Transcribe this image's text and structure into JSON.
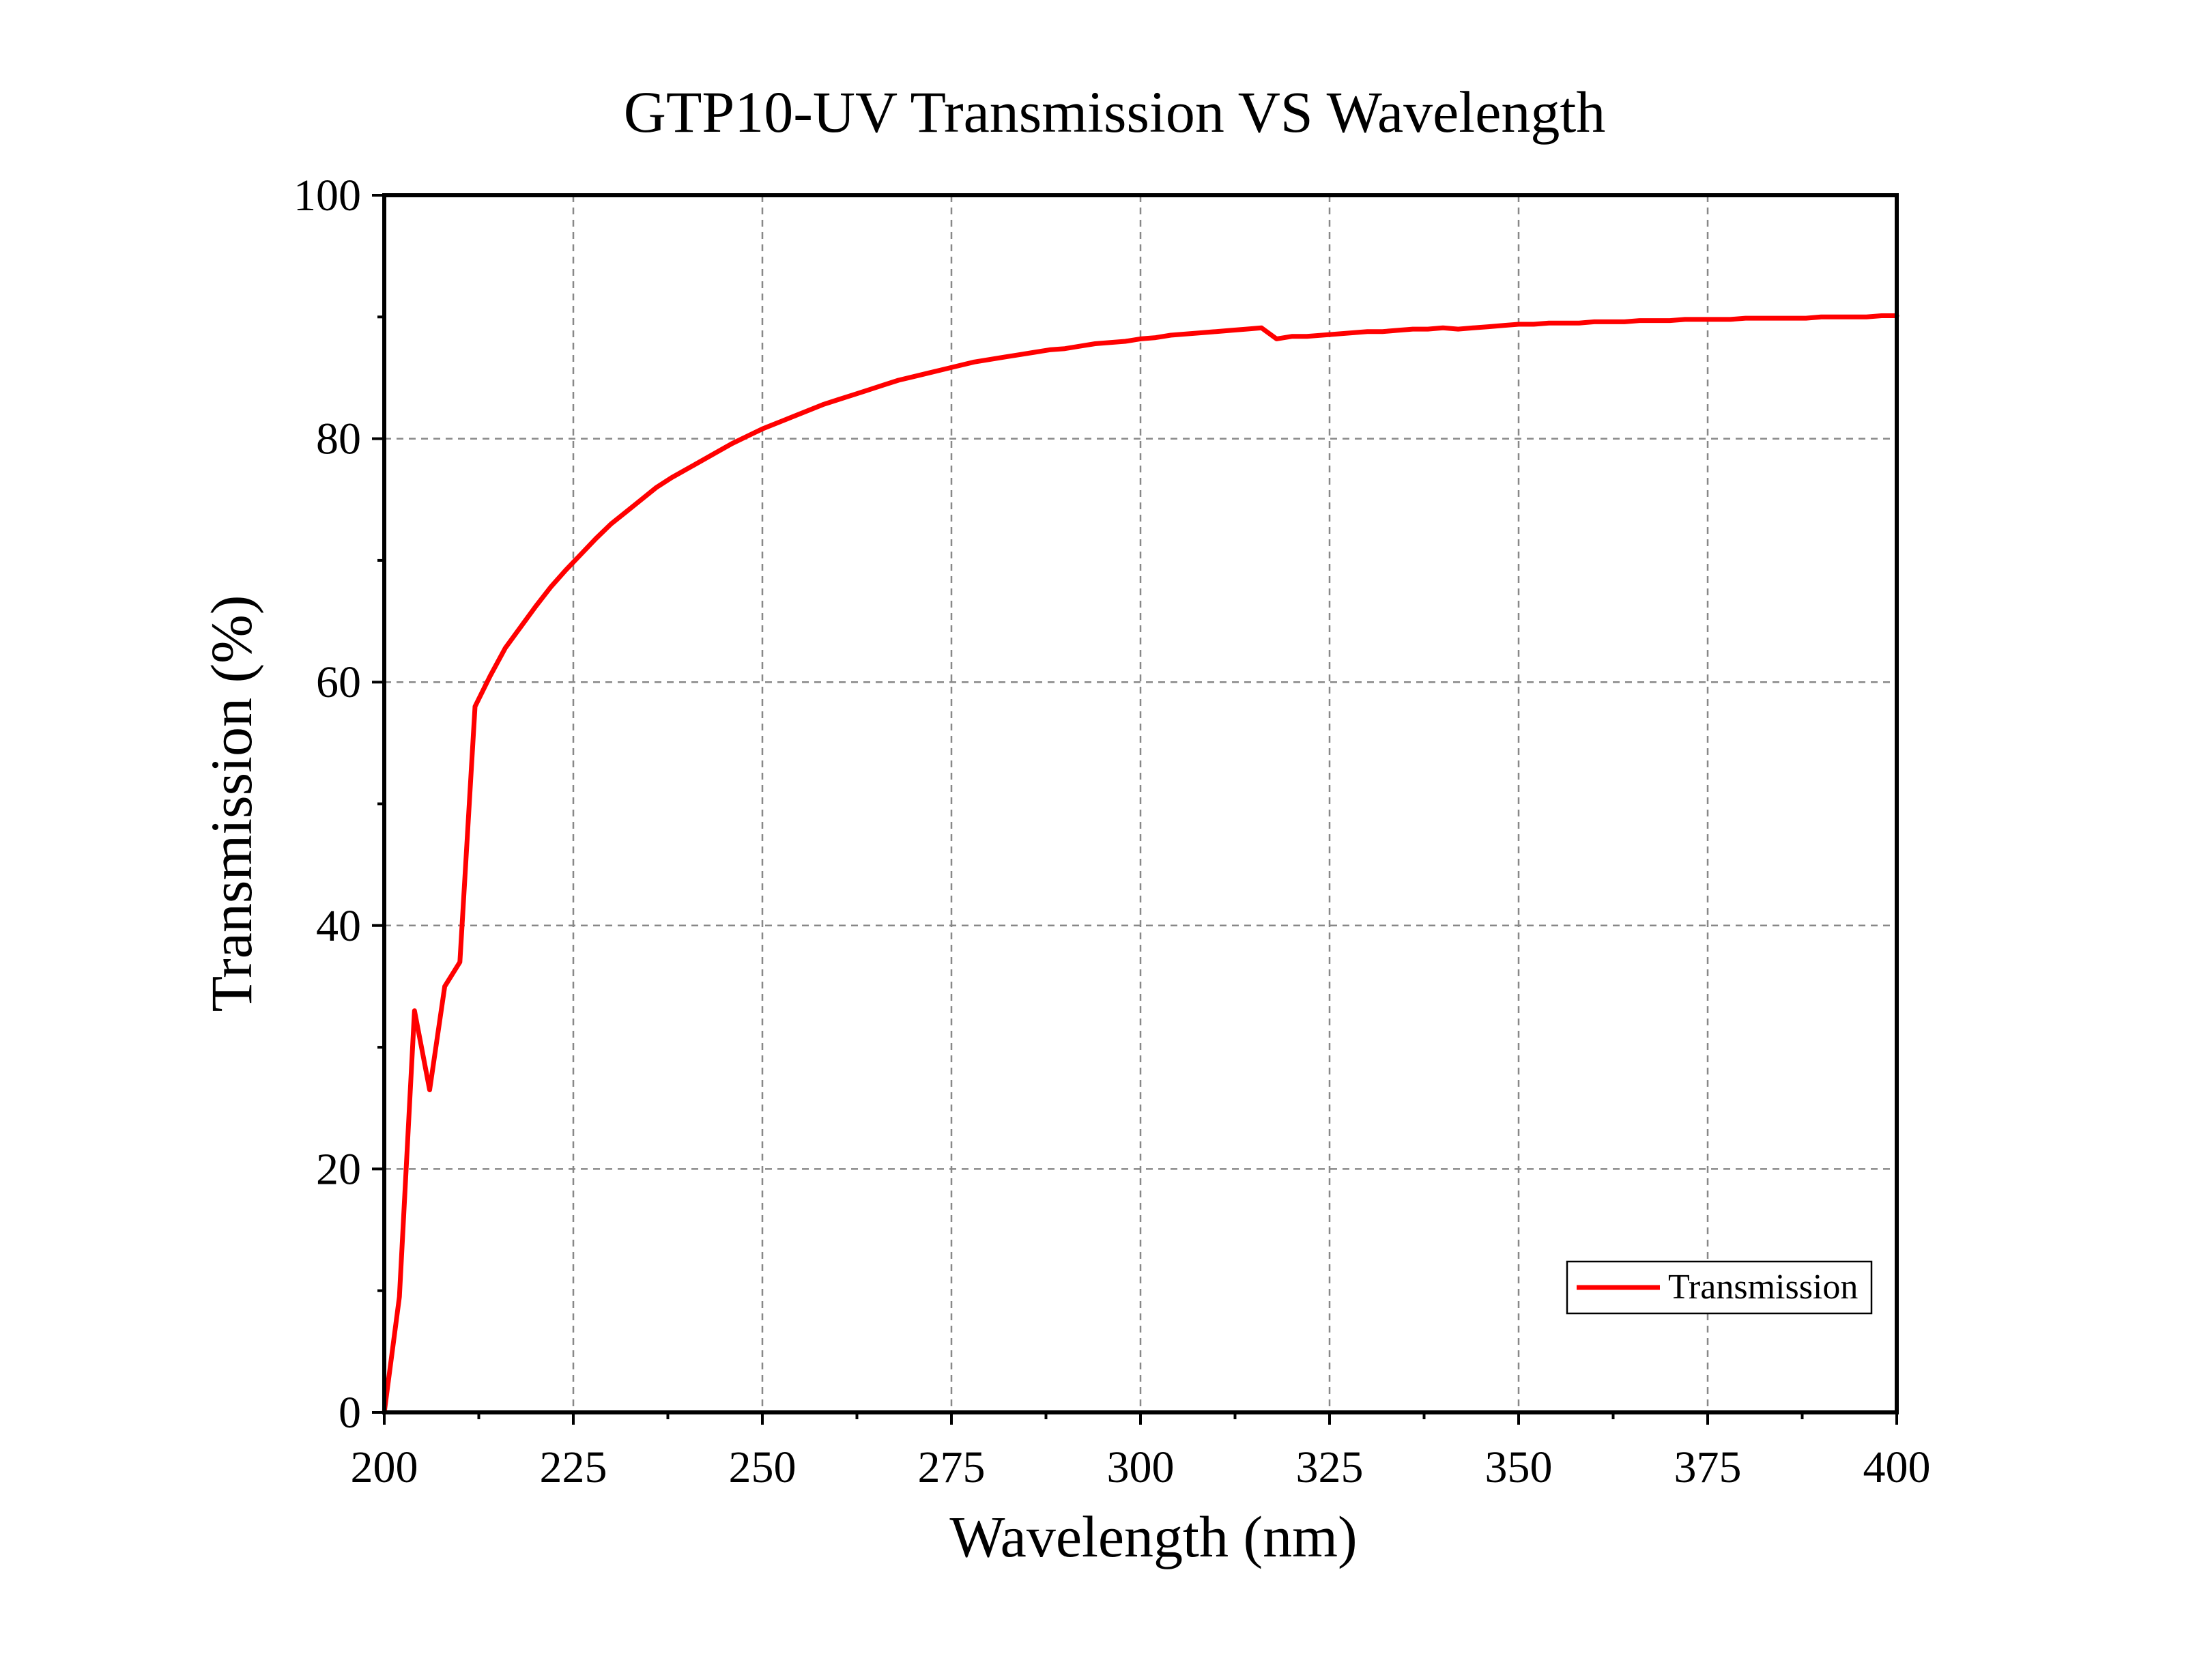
{
  "chart_data": {
    "type": "line",
    "title": "GTP10-UV Transmission VS Wavelength",
    "xlabel": "Wavelength (nm)",
    "ylabel": "Transmission (%)",
    "xlim": [
      200,
      400
    ],
    "ylim": [
      0,
      100
    ],
    "xticks": [
      200,
      225,
      250,
      275,
      300,
      325,
      350,
      375,
      400
    ],
    "yticks": [
      0,
      20,
      40,
      60,
      80,
      100
    ],
    "grid": true,
    "legend_position": "bottom-right",
    "colors": {
      "series": "#ff0000",
      "axis": "#000000",
      "grid": "#888888"
    },
    "series": [
      {
        "name": "Transmission",
        "x": [
          200,
          202,
          204,
          206,
          208,
          210,
          212,
          214,
          216,
          218,
          220,
          222,
          224,
          226,
          228,
          230,
          232,
          234,
          236,
          238,
          240,
          242,
          244,
          246,
          248,
          250,
          252,
          254,
          256,
          258,
          260,
          262,
          264,
          266,
          268,
          270,
          272,
          274,
          276,
          278,
          280,
          282,
          284,
          286,
          288,
          290,
          292,
          294,
          296,
          298,
          300,
          302,
          304,
          306,
          308,
          310,
          312,
          314,
          316,
          318,
          320,
          322,
          324,
          326,
          328,
          330,
          332,
          334,
          336,
          338,
          340,
          342,
          344,
          346,
          348,
          350,
          352,
          354,
          356,
          358,
          360,
          362,
          364,
          366,
          368,
          370,
          372,
          374,
          376,
          378,
          380,
          382,
          384,
          386,
          388,
          390,
          392,
          394,
          396,
          398,
          400
        ],
        "y": [
          0,
          9.5,
          33,
          26.5,
          35,
          37,
          58,
          60.5,
          62.8,
          64.5,
          66.2,
          67.8,
          69.2,
          70.5,
          71.8,
          73.0,
          74.0,
          75.0,
          76.0,
          76.8,
          77.5,
          78.2,
          78.9,
          79.6,
          80.2,
          80.8,
          81.3,
          81.8,
          82.3,
          82.8,
          83.2,
          83.6,
          84.0,
          84.4,
          84.8,
          85.1,
          85.4,
          85.7,
          86.0,
          86.3,
          86.5,
          86.7,
          86.9,
          87.1,
          87.3,
          87.4,
          87.6,
          87.8,
          87.9,
          88.0,
          88.2,
          88.3,
          88.5,
          88.6,
          88.7,
          88.8,
          88.9,
          89.0,
          89.1,
          88.2,
          88.4,
          88.4,
          88.5,
          88.6,
          88.7,
          88.8,
          88.8,
          88.9,
          89.0,
          89.0,
          89.1,
          89.0,
          89.1,
          89.2,
          89.3,
          89.4,
          89.4,
          89.5,
          89.5,
          89.5,
          89.6,
          89.6,
          89.6,
          89.7,
          89.7,
          89.7,
          89.8,
          89.8,
          89.8,
          89.8,
          89.9,
          89.9,
          89.9,
          89.9,
          89.9,
          90.0,
          90.0,
          90.0,
          90.0,
          90.1,
          90.1
        ]
      }
    ]
  }
}
